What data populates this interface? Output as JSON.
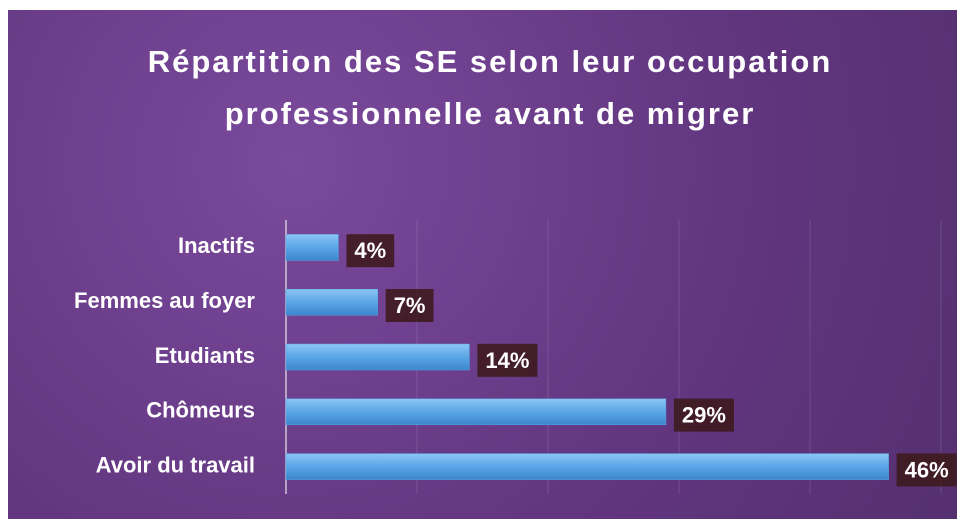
{
  "chart_data": {
    "type": "hbar",
    "title": "Répartition des SE selon leur occupation professionnelle avant de migrer",
    "categories": [
      "Inactifs",
      "Femmes au foyer",
      "Etudiants",
      "Chômeurs",
      "Avoir du travail"
    ],
    "values": [
      4,
      7,
      14,
      29,
      46
    ],
    "value_labels": [
      "4%",
      "7%",
      "14%",
      "29%",
      "46%"
    ],
    "color": "#5aa6e6",
    "xlim": [
      0,
      50
    ],
    "xticks": [
      0,
      10,
      20,
      30,
      40,
      50
    ],
    "grid": true
  }
}
